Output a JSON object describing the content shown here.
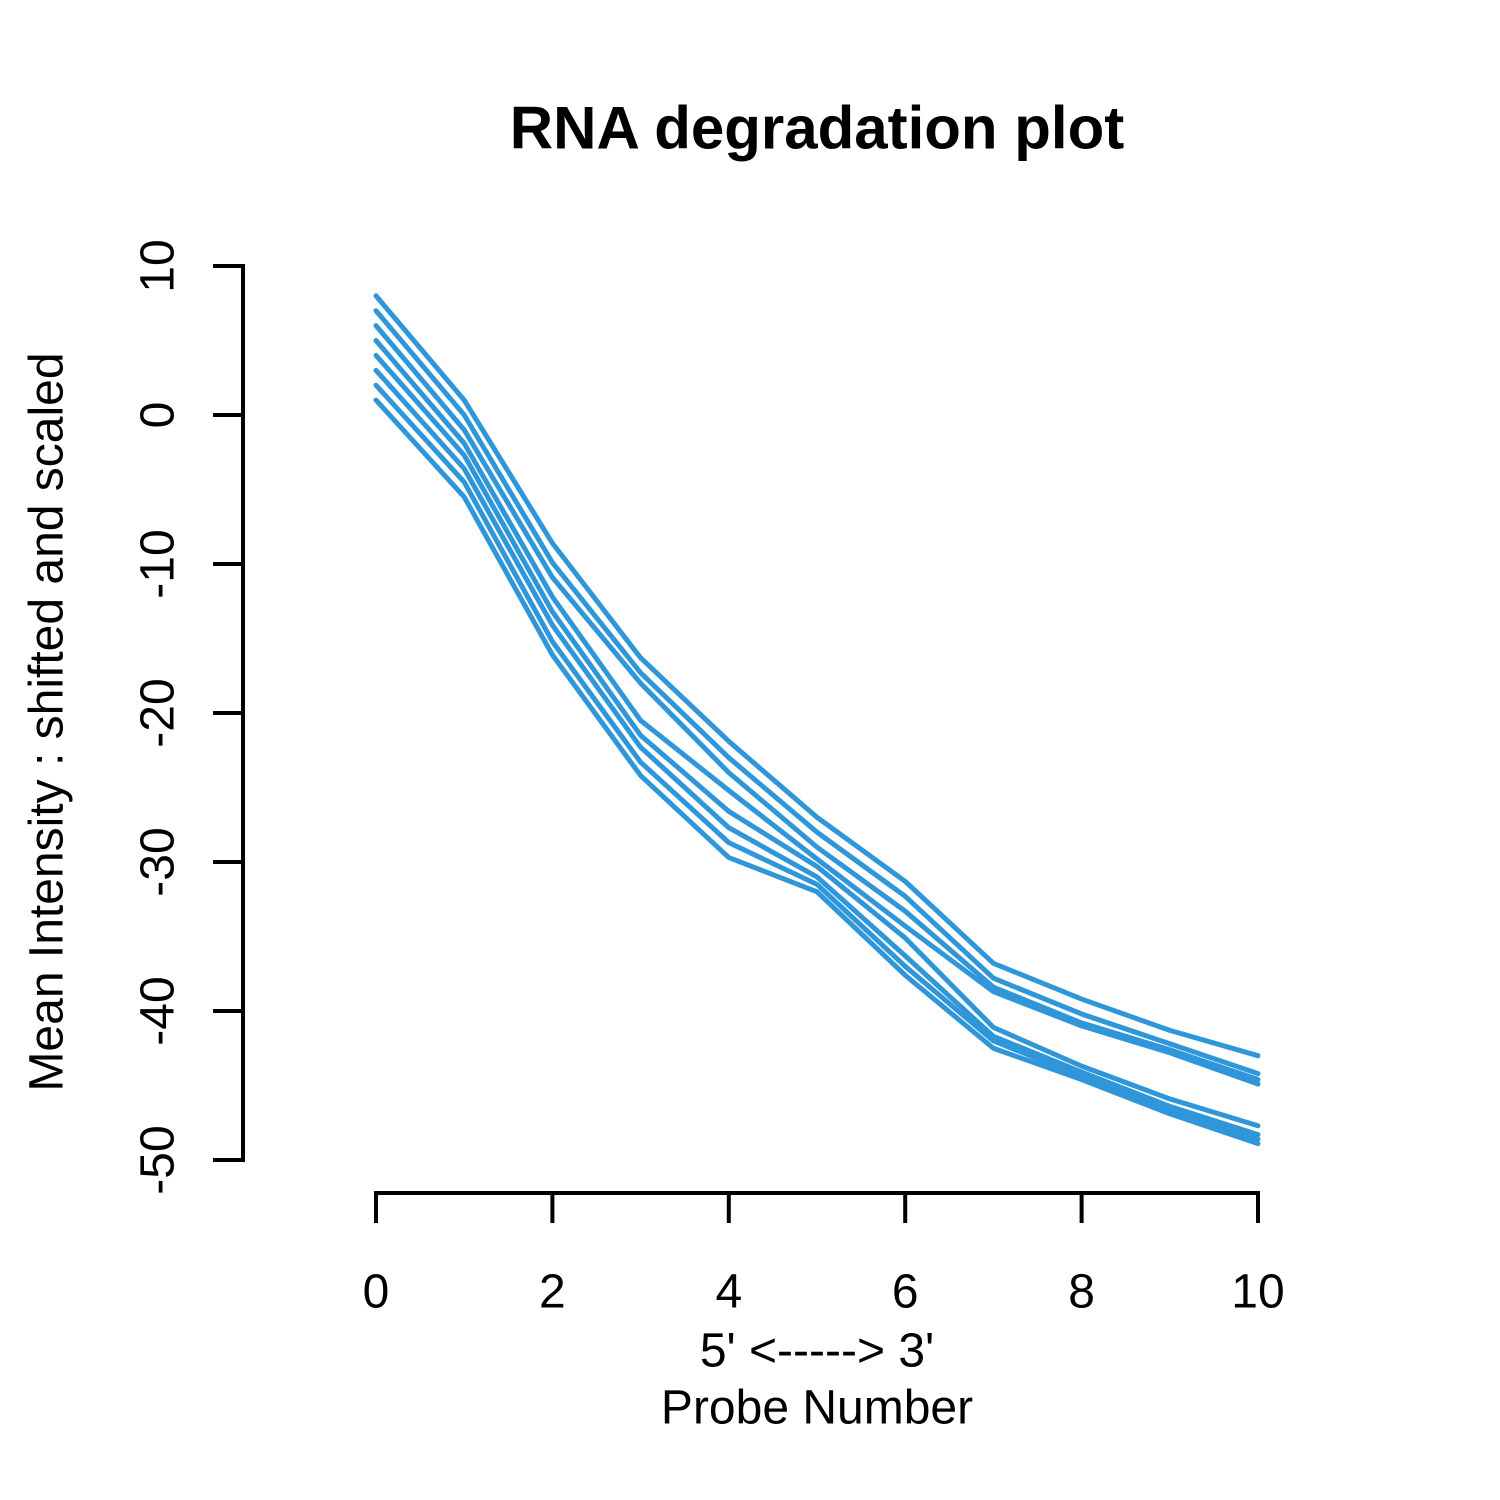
{
  "chart_data": {
    "type": "line",
    "title": "RNA degradation plot",
    "ylabel": "Mean Intensity : shifted and scaled",
    "xlabel_line1": "5' <-----> 3'",
    "xlabel_line2": "Probe Number",
    "x": [
      0,
      1,
      2,
      3,
      4,
      5,
      6,
      7,
      8,
      9,
      10
    ],
    "x_ticks": [
      0,
      2,
      4,
      6,
      8,
      10
    ],
    "y_ticks": [
      10,
      0,
      -10,
      -20,
      -30,
      -40,
      -50
    ],
    "xlim": [
      0,
      10
    ],
    "ylim": [
      -50,
      10
    ],
    "grid": false,
    "legend": "none",
    "line_color": "#2E96D9",
    "axis_color": "#000000",
    "series": [
      {
        "name": "line-1",
        "values": [
          8.0,
          1.0,
          -8.6,
          -16.3,
          -21.9,
          -27.0,
          -31.3,
          -36.8,
          -39.2,
          -41.3,
          -43.0
        ]
      },
      {
        "name": "line-2",
        "values": [
          7.0,
          0.0,
          -9.9,
          -17.3,
          -23.0,
          -28.0,
          -32.3,
          -37.8,
          -40.2,
          -42.2,
          -44.2
        ]
      },
      {
        "name": "line-3",
        "values": [
          6.0,
          -1.0,
          -10.9,
          -18.0,
          -24.0,
          -29.0,
          -33.3,
          -38.4,
          -40.8,
          -42.6,
          -44.6
        ]
      },
      {
        "name": "line-4",
        "values": [
          5.0,
          -1.9,
          -12.2,
          -20.5,
          -25.2,
          -29.8,
          -34.3,
          -38.7,
          -41.0,
          -42.8,
          -44.9
        ]
      },
      {
        "name": "line-5",
        "values": [
          4.0,
          -2.7,
          -13.2,
          -21.5,
          -26.6,
          -30.3,
          -35.1,
          -41.1,
          -43.7,
          -45.9,
          -47.7
        ]
      },
      {
        "name": "line-6",
        "values": [
          3.0,
          -3.6,
          -14.1,
          -22.3,
          -27.7,
          -31.0,
          -36.3,
          -41.7,
          -44.1,
          -46.4,
          -48.3
        ]
      },
      {
        "name": "line-7",
        "values": [
          2.0,
          -4.5,
          -15.2,
          -23.3,
          -28.7,
          -31.5,
          -37.0,
          -42.0,
          -44.4,
          -46.7,
          -48.6
        ]
      },
      {
        "name": "line-8",
        "values": [
          1.0,
          -5.5,
          -16.1,
          -24.2,
          -29.7,
          -32.0,
          -37.6,
          -42.5,
          -44.6,
          -46.9,
          -48.9
        ]
      }
    ]
  }
}
